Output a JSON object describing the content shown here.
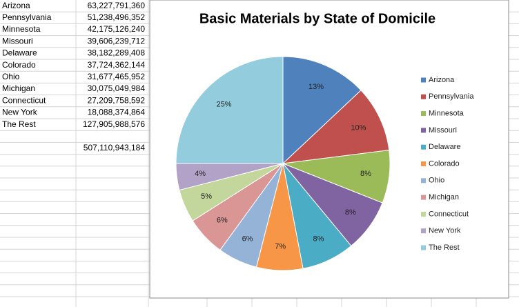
{
  "table": {
    "rows": [
      [
        "Arizona",
        "63,227,791,360"
      ],
      [
        "Pennsylvania",
        "51,238,496,352"
      ],
      [
        "Minnesota",
        "42,175,126,240"
      ],
      [
        "Missouri",
        "39,606,239,712"
      ],
      [
        "Delaware",
        "38,182,289,408"
      ],
      [
        "Colorado",
        "37,724,362,144"
      ],
      [
        "Ohio",
        "31,677,465,952"
      ],
      [
        "Michigan",
        "30,075,049,984"
      ],
      [
        "Connecticut",
        "27,209,758,592"
      ],
      [
        "New York",
        "18,088,374,864"
      ],
      [
        "The Rest",
        "127,905,988,576"
      ]
    ],
    "total": "507,110,943,184"
  },
  "chart_data": {
    "type": "pie",
    "title": "Basic Materials by State of Domicile",
    "categories": [
      "Arizona",
      "Pennsylvania",
      "Minnesota",
      "Missouri",
      "Delaware",
      "Colorado",
      "Ohio",
      "Michigan",
      "Connecticut",
      "New York",
      "The Rest"
    ],
    "values": [
      13,
      10,
      8,
      8,
      8,
      7,
      6,
      6,
      5,
      4,
      25
    ],
    "value_labels": [
      "13%",
      "10%",
      "8%",
      "8%",
      "8%",
      "7%",
      "6%",
      "6%",
      "5%",
      "4%",
      "25%"
    ],
    "colors": [
      "#4f81bd",
      "#c0504d",
      "#9bbb59",
      "#8064a2",
      "#4bacc6",
      "#f79646",
      "#95b3d7",
      "#d99694",
      "#c3d69b",
      "#b2a2c7",
      "#93cddd"
    ],
    "legend": "right"
  }
}
